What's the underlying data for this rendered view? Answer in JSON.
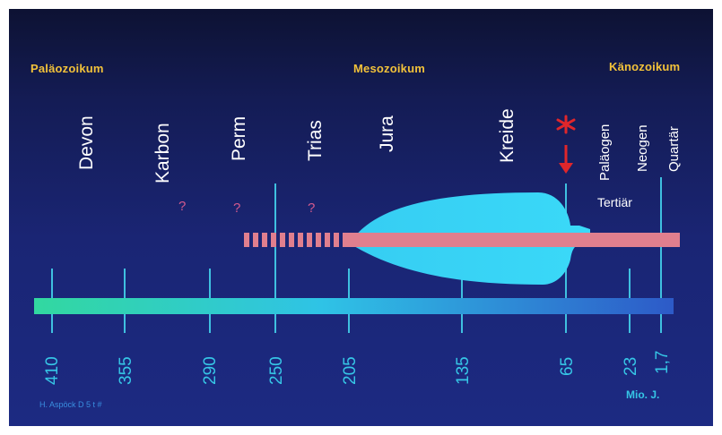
{
  "eras": [
    {
      "label": "Paläozoikum",
      "color": "#f2c23a"
    },
    {
      "label": "Mesozoikum",
      "color": "#f2c23a"
    },
    {
      "label": "Känozoikum",
      "color": "#f2c23a"
    }
  ],
  "periods": [
    "Devon",
    "Karbon",
    "Perm",
    "Trias",
    "Jura",
    "Kreide",
    "Paläogen",
    "Neogen",
    "Quartär"
  ],
  "tertiary_label": "Tertiär",
  "question_marks": [
    "?",
    "?",
    "?"
  ],
  "ages": [
    "410",
    "355",
    "290",
    "250",
    "205",
    "135",
    "65",
    "23",
    "1,7"
  ],
  "unit_label": "Mio. J.",
  "credit": "H. Aspöck  D 5 t #",
  "colors": {
    "era_text": "#f2c23a",
    "age_text": "#36c6e6",
    "range_bar": "#e07f8e",
    "lineage_shape": "#3ad4f4",
    "extinction_mark": "#e0262b",
    "timeline_start": "#32d8a0",
    "timeline_end": "#2d5ac8"
  },
  "icons": {
    "extinction_mark": "red-star-icon",
    "arrow": "red-down-arrow-icon"
  }
}
